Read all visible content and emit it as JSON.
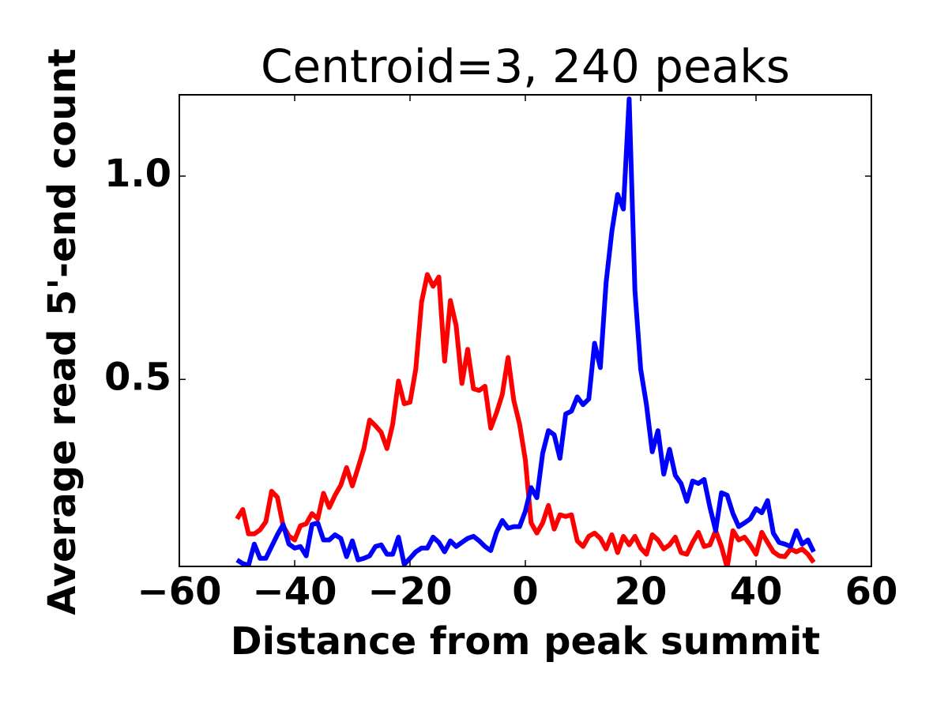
{
  "chart_data": {
    "type": "line",
    "title": "Centroid=3, 240 peaks",
    "xlabel": "Distance from peak summit",
    "ylabel": "Average read 5'-end count",
    "x": [
      -50,
      -49,
      -48,
      -47,
      -46,
      -45,
      -44,
      -43,
      -42,
      -41,
      -40,
      -39,
      -38,
      -37,
      -36,
      -35,
      -34,
      -33,
      -32,
      -31,
      -30,
      -29,
      -28,
      -27,
      -26,
      -25,
      -24,
      -23,
      -22,
      -21,
      -20,
      -19,
      -18,
      -17,
      -16,
      -15,
      -14,
      -13,
      -12,
      -11,
      -10,
      -9,
      -8,
      -7,
      -6,
      -5,
      -4,
      -3,
      -2,
      -1,
      0,
      1,
      2,
      3,
      4,
      5,
      6,
      7,
      8,
      9,
      10,
      11,
      12,
      13,
      14,
      15,
      16,
      17,
      18,
      19,
      20,
      21,
      22,
      23,
      24,
      25,
      26,
      27,
      28,
      29,
      30,
      31,
      32,
      33,
      34,
      35,
      36,
      37,
      38,
      39,
      40,
      41,
      42,
      43,
      44,
      45,
      46,
      47,
      48,
      49,
      50
    ],
    "series": [
      {
        "color": "#ff0000",
        "values": [
          0.157,
          0.18,
          0.12,
          0.12,
          0.13,
          0.15,
          0.225,
          0.21,
          0.14,
          0.115,
          0.105,
          0.14,
          0.145,
          0.17,
          0.157,
          0.22,
          0.185,
          0.215,
          0.24,
          0.283,
          0.238,
          0.283,
          0.33,
          0.4,
          0.386,
          0.37,
          0.33,
          0.39,
          0.496,
          0.44,
          0.444,
          0.525,
          0.69,
          0.758,
          0.729,
          0.752,
          0.545,
          0.694,
          0.632,
          0.49,
          0.574,
          0.477,
          0.473,
          0.483,
          0.38,
          0.418,
          0.463,
          0.554,
          0.448,
          0.39,
          0.302,
          0.147,
          0.122,
          0.147,
          0.19,
          0.132,
          0.167,
          0.163,
          0.167,
          0.103,
          0.089,
          0.114,
          0.122,
          0.109,
          0.083,
          0.118,
          0.074,
          0.114,
          0.093,
          0.114,
          0.085,
          0.07,
          0.118,
          0.105,
          0.083,
          0.093,
          0.112,
          0.074,
          0.07,
          0.099,
          0.124,
          0.089,
          0.093,
          0.128,
          0.089,
          0.037,
          0.128,
          0.105,
          0.112,
          0.093,
          0.07,
          0.124,
          0.099,
          0.076,
          0.066,
          0.064,
          0.083,
          0.076,
          0.083,
          0.07,
          0.05
        ]
      },
      {
        "color": "#0000ff",
        "values": [
          0.056,
          0.047,
          0.043,
          0.095,
          0.06,
          0.06,
          0.089,
          0.118,
          0.143,
          0.095,
          0.085,
          0.089,
          0.066,
          0.143,
          0.147,
          0.105,
          0.105,
          0.118,
          0.109,
          0.064,
          0.103,
          0.056,
          0.06,
          0.066,
          0.089,
          0.093,
          0.07,
          0.07,
          0.112,
          0.045,
          0.06,
          0.076,
          0.085,
          0.085,
          0.112,
          0.099,
          0.076,
          0.103,
          0.089,
          0.099,
          0.109,
          0.114,
          0.103,
          0.089,
          0.079,
          0.124,
          0.153,
          0.134,
          0.138,
          0.138,
          0.176,
          0.234,
          0.209,
          0.318,
          0.374,
          0.364,
          0.306,
          0.415,
          0.422,
          0.457,
          0.438,
          0.452,
          0.589,
          0.529,
          0.738,
          0.864,
          0.955,
          0.919,
          1.19,
          0.719,
          0.525,
          0.438,
          0.322,
          0.374,
          0.267,
          0.328,
          0.264,
          0.244,
          0.2,
          0.25,
          0.244,
          0.254,
          0.186,
          0.128,
          0.221,
          0.215,
          0.17,
          0.138,
          0.147,
          0.157,
          0.182,
          0.172,
          0.202,
          0.122,
          0.099,
          0.095,
          0.089,
          0.128,
          0.095,
          0.105,
          0.076
        ]
      }
    ],
    "xlim": [
      -60,
      60
    ],
    "xticks": [
      {
        "value": -60,
        "label": "−60"
      },
      {
        "value": -40,
        "label": "−40"
      },
      {
        "value": -20,
        "label": "−20"
      },
      0,
      20,
      40,
      60
    ],
    "ylim": [
      0.04,
      1.2
    ],
    "yticks": [
      0.5,
      {
        "value": 1,
        "label": "1.0"
      }
    ]
  }
}
